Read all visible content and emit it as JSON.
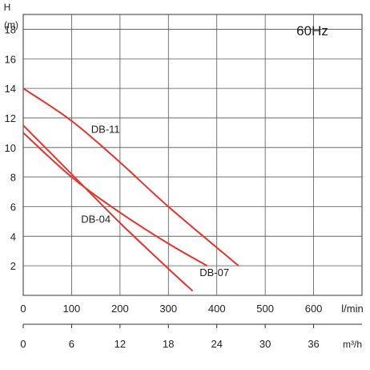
{
  "chart_data": {
    "type": "line",
    "y_axis": {
      "label_top": "H",
      "label_unit": "(m)",
      "min": 0,
      "max": 19,
      "ticks": [
        2,
        4,
        6,
        8,
        10,
        12,
        14,
        16,
        18
      ]
    },
    "x_axis": {
      "min": 0,
      "max": 700,
      "unit": "l/min",
      "ticks": [
        0,
        100,
        200,
        300,
        400,
        500,
        600
      ]
    },
    "x2_axis": {
      "unit": "m³/h",
      "ticks": [
        "0",
        "6",
        "12",
        "18",
        "24",
        "30",
        "36"
      ]
    },
    "annotation": "60Hz",
    "grid": true,
    "line_color": "#e8332c",
    "series": [
      {
        "name": "DB-11",
        "label_at": [
          170,
          11.0
        ],
        "points": [
          [
            0,
            14.0
          ],
          [
            100,
            11.8
          ],
          [
            200,
            9.0
          ],
          [
            300,
            6.0
          ],
          [
            445,
            2.0
          ]
        ]
      },
      {
        "name": "DB-07",
        "label_at": [
          395,
          1.3
        ],
        "points": [
          [
            0,
            11.0
          ],
          [
            100,
            8.0
          ],
          [
            200,
            5.6
          ],
          [
            300,
            3.5
          ],
          [
            380,
            2.0
          ]
        ]
      },
      {
        "name": "DB-04",
        "label_at": [
          150,
          4.9
        ],
        "points": [
          [
            0,
            11.5
          ],
          [
            100,
            8.2
          ],
          [
            200,
            4.9
          ],
          [
            300,
            1.8
          ],
          [
            350,
            0.3
          ]
        ]
      }
    ]
  }
}
